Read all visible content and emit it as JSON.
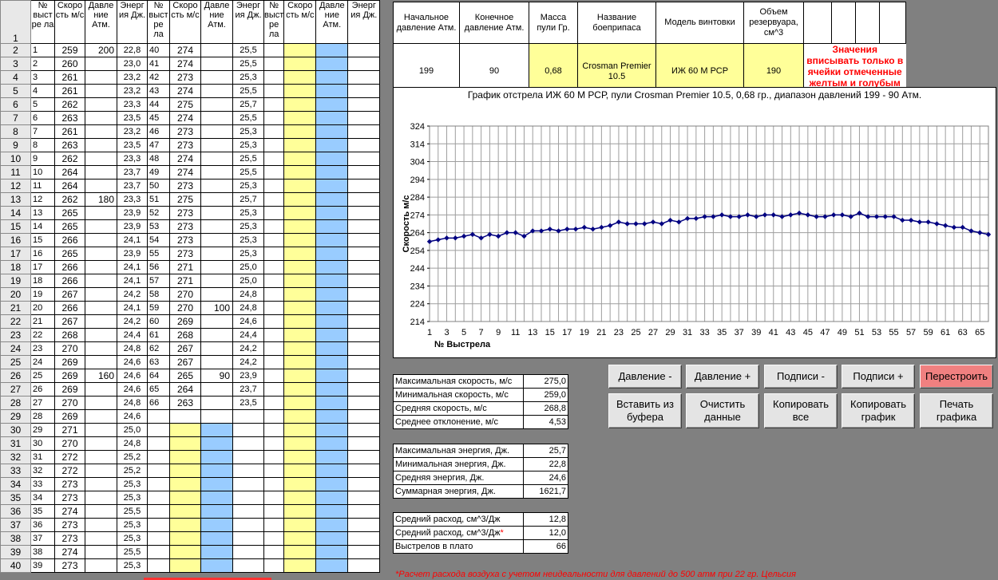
{
  "sheet": {
    "header_row_number": "1",
    "columns": {
      "shot": "№ выст ре ла",
      "speed": "Скоро сть м/с",
      "pressure": "Давле ние Атм.",
      "energy": "Энерг ия Дж."
    },
    "block1": [
      [
        "1",
        "259",
        "200",
        "22,8"
      ],
      [
        "2",
        "260",
        "",
        "23,0"
      ],
      [
        "3",
        "261",
        "",
        "23,2"
      ],
      [
        "4",
        "261",
        "",
        "23,2"
      ],
      [
        "5",
        "262",
        "",
        "23,3"
      ],
      [
        "6",
        "263",
        "",
        "23,5"
      ],
      [
        "7",
        "261",
        "",
        "23,2"
      ],
      [
        "8",
        "263",
        "",
        "23,5"
      ],
      [
        "9",
        "262",
        "",
        "23,3"
      ],
      [
        "10",
        "264",
        "",
        "23,7"
      ],
      [
        "11",
        "264",
        "",
        "23,7"
      ],
      [
        "12",
        "262",
        "180",
        "23,3"
      ],
      [
        "13",
        "265",
        "",
        "23,9"
      ],
      [
        "14",
        "265",
        "",
        "23,9"
      ],
      [
        "15",
        "266",
        "",
        "24,1"
      ],
      [
        "16",
        "265",
        "",
        "23,9"
      ],
      [
        "17",
        "266",
        "",
        "24,1"
      ],
      [
        "18",
        "266",
        "",
        "24,1"
      ],
      [
        "19",
        "267",
        "",
        "24,2"
      ],
      [
        "20",
        "266",
        "",
        "24,1"
      ],
      [
        "21",
        "267",
        "",
        "24,2"
      ],
      [
        "22",
        "268",
        "",
        "24,4"
      ],
      [
        "23",
        "270",
        "",
        "24,8"
      ],
      [
        "24",
        "269",
        "",
        "24,6"
      ],
      [
        "25",
        "269",
        "160",
        "24,6"
      ],
      [
        "26",
        "269",
        "",
        "24,6"
      ],
      [
        "27",
        "270",
        "",
        "24,8"
      ],
      [
        "28",
        "269",
        "",
        "24,6"
      ],
      [
        "29",
        "271",
        "",
        "25,0"
      ],
      [
        "30",
        "270",
        "",
        "24,8"
      ],
      [
        "31",
        "272",
        "",
        "25,2"
      ],
      [
        "32",
        "272",
        "",
        "25,2"
      ],
      [
        "33",
        "273",
        "",
        "25,3"
      ],
      [
        "34",
        "273",
        "",
        "25,3"
      ],
      [
        "35",
        "274",
        "",
        "25,5"
      ],
      [
        "36",
        "273",
        "",
        "25,3"
      ],
      [
        "37",
        "273",
        "",
        "25,3"
      ],
      [
        "38",
        "274",
        "",
        "25,5"
      ],
      [
        "39",
        "273",
        "",
        "25,3"
      ]
    ],
    "block2": [
      [
        "40",
        "274",
        "",
        "25,5"
      ],
      [
        "41",
        "274",
        "",
        "25,5"
      ],
      [
        "42",
        "273",
        "",
        "25,3"
      ],
      [
        "43",
        "274",
        "",
        "25,5"
      ],
      [
        "44",
        "275",
        "",
        "25,7"
      ],
      [
        "45",
        "274",
        "",
        "25,5"
      ],
      [
        "46",
        "273",
        "",
        "25,3"
      ],
      [
        "47",
        "273",
        "",
        "25,3"
      ],
      [
        "48",
        "274",
        "",
        "25,5"
      ],
      [
        "49",
        "274",
        "",
        "25,5"
      ],
      [
        "50",
        "273",
        "",
        "25,3"
      ],
      [
        "51",
        "275",
        "",
        "25,7"
      ],
      [
        "52",
        "273",
        "",
        "25,3"
      ],
      [
        "53",
        "273",
        "",
        "25,3"
      ],
      [
        "54",
        "273",
        "",
        "25,3"
      ],
      [
        "55",
        "273",
        "",
        "25,3"
      ],
      [
        "56",
        "271",
        "",
        "25,0"
      ],
      [
        "57",
        "271",
        "",
        "25,0"
      ],
      [
        "58",
        "270",
        "",
        "24,8"
      ],
      [
        "59",
        "270",
        "100",
        "24,8"
      ],
      [
        "60",
        "269",
        "",
        "24,6"
      ],
      [
        "61",
        "268",
        "",
        "24,4"
      ],
      [
        "62",
        "267",
        "",
        "24,2"
      ],
      [
        "63",
        "267",
        "",
        "24,2"
      ],
      [
        "64",
        "265",
        "90",
        "23,9"
      ],
      [
        "65",
        "264",
        "",
        "23,7"
      ],
      [
        "66",
        "263",
        "",
        "23,5"
      ]
    ]
  },
  "params": {
    "headers": [
      "Начальное давление Атм.",
      "Конечное давление Атм.",
      "Масса пули Гр.",
      "Название боеприпаса",
      "Модель винтовки",
      "Объем резервуара, см^3"
    ],
    "values": [
      "199",
      "90",
      "0,68",
      "Crosman Premier 10.5",
      "ИЖ 60 М РСР",
      "190"
    ],
    "note": "Значения вписывать только в ячейки отмеченные желтым и голубым цветом!!!"
  },
  "chart_data": {
    "type": "line",
    "title": "График отстрела ИЖ 60 М РСР, пули Crosman Premier 10.5, 0,68 гр., диапазон давлений 199 - 90 Атм.",
    "xlabel": "№ Выстрела",
    "ylabel": "Скорость м/с",
    "ylim": [
      214,
      324
    ],
    "yticks": [
      214,
      224,
      234,
      244,
      254,
      264,
      274,
      284,
      294,
      304,
      314,
      324
    ],
    "xticks": [
      1,
      3,
      5,
      7,
      9,
      11,
      13,
      15,
      17,
      19,
      21,
      23,
      25,
      27,
      29,
      31,
      33,
      35,
      37,
      39,
      41,
      43,
      45,
      47,
      49,
      51,
      53,
      55,
      57,
      59,
      61,
      63,
      65
    ],
    "grid": true,
    "marker_color": "#000080",
    "x": [
      1,
      2,
      3,
      4,
      5,
      6,
      7,
      8,
      9,
      10,
      11,
      12,
      13,
      14,
      15,
      16,
      17,
      18,
      19,
      20,
      21,
      22,
      23,
      24,
      25,
      26,
      27,
      28,
      29,
      30,
      31,
      32,
      33,
      34,
      35,
      36,
      37,
      38,
      39,
      40,
      41,
      42,
      43,
      44,
      45,
      46,
      47,
      48,
      49,
      50,
      51,
      52,
      53,
      54,
      55,
      56,
      57,
      58,
      59,
      60,
      61,
      62,
      63,
      64,
      65,
      66
    ],
    "values": [
      259,
      260,
      261,
      261,
      262,
      263,
      261,
      263,
      262,
      264,
      264,
      262,
      265,
      265,
      266,
      265,
      266,
      266,
      267,
      266,
      267,
      268,
      270,
      269,
      269,
      269,
      270,
      269,
      271,
      270,
      272,
      272,
      273,
      273,
      274,
      273,
      273,
      274,
      273,
      274,
      274,
      273,
      274,
      275,
      274,
      273,
      273,
      274,
      274,
      273,
      275,
      273,
      273,
      273,
      273,
      271,
      271,
      270,
      270,
      269,
      268,
      267,
      267,
      265,
      264,
      263
    ]
  },
  "buttons": {
    "pressure_minus": "Давление -",
    "pressure_plus": "Давление +",
    "labels_minus": "Подписи -",
    "labels_plus": "Подписи +",
    "rebuild": "Перестроить",
    "paste_line1": "Вставить из",
    "paste_line2": "буфера",
    "clear_line1": "Очистить",
    "clear_line2": "данные",
    "copy_all_line1": "Копировать",
    "copy_all_line2": "все",
    "copy_chart_line1": "Копировать",
    "copy_chart_line2": "график",
    "print_line1": "Печать",
    "print_line2": "графика"
  },
  "stats": {
    "speed": [
      {
        "label": "Максимальная скорость, м/с",
        "value": "275,0"
      },
      {
        "label": "Минимальная скорость, м/с",
        "value": "259,0"
      },
      {
        "label": "Средняя скорость, м/с",
        "value": "268,8"
      },
      {
        "label": "Среднее отклонение, м/с",
        "value": "4,53"
      }
    ],
    "energy": [
      {
        "label": "Максимальная энергия, Дж.",
        "value": "25,7"
      },
      {
        "label": "Минимальная энергия, Дж.",
        "value": "22,8"
      },
      {
        "label": "Средняя энергия, Дж.",
        "value": "24,6"
      },
      {
        "label": "Суммарная энергия, Дж.",
        "value": "1621,7"
      }
    ],
    "consumption": [
      {
        "label": "Средний расход, см^3/Дж",
        "value": "12,8"
      },
      {
        "label": "Средний расход, см^3/Дж",
        "value": "12,0",
        "mark": "*"
      },
      {
        "label": "Выстрелов в плато",
        "value": "66"
      }
    ]
  },
  "footnote": "*Расчет расхода воздуха с учетом неидеальности для давлений до 500 атм при 22 гр. Цельсия"
}
